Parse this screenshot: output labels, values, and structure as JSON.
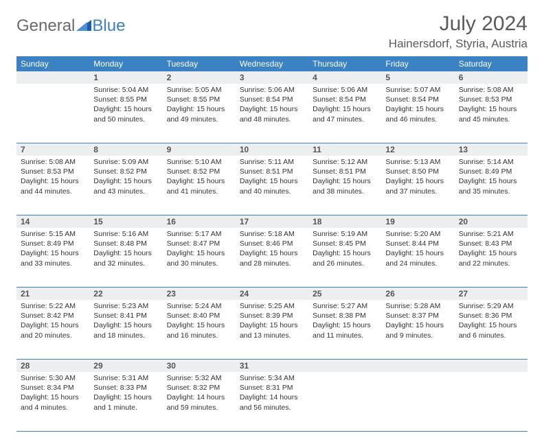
{
  "brand": {
    "part1": "General",
    "part2": "Blue"
  },
  "title": "July 2024",
  "location": "Hainersdorf, Styria, Austria",
  "weekday_headers": [
    "Sunday",
    "Monday",
    "Tuesday",
    "Wednesday",
    "Thursday",
    "Friday",
    "Saturday"
  ],
  "colors": {
    "header_bg": "#3b82c4",
    "header_fg": "#ffffff",
    "daynum_bg": "#eceef0",
    "rule": "#3b82c4",
    "text": "#333333",
    "title_fg": "#5a5a5a"
  },
  "weeks": [
    {
      "nums": [
        "",
        "1",
        "2",
        "3",
        "4",
        "5",
        "6"
      ],
      "cells": [
        null,
        {
          "sr": "Sunrise: 5:04 AM",
          "ss": "Sunset: 8:55 PM",
          "dl": "Daylight: 15 hours and 50 minutes."
        },
        {
          "sr": "Sunrise: 5:05 AM",
          "ss": "Sunset: 8:55 PM",
          "dl": "Daylight: 15 hours and 49 minutes."
        },
        {
          "sr": "Sunrise: 5:06 AM",
          "ss": "Sunset: 8:54 PM",
          "dl": "Daylight: 15 hours and 48 minutes."
        },
        {
          "sr": "Sunrise: 5:06 AM",
          "ss": "Sunset: 8:54 PM",
          "dl": "Daylight: 15 hours and 47 minutes."
        },
        {
          "sr": "Sunrise: 5:07 AM",
          "ss": "Sunset: 8:54 PM",
          "dl": "Daylight: 15 hours and 46 minutes."
        },
        {
          "sr": "Sunrise: 5:08 AM",
          "ss": "Sunset: 8:53 PM",
          "dl": "Daylight: 15 hours and 45 minutes."
        }
      ]
    },
    {
      "nums": [
        "7",
        "8",
        "9",
        "10",
        "11",
        "12",
        "13"
      ],
      "cells": [
        {
          "sr": "Sunrise: 5:08 AM",
          "ss": "Sunset: 8:53 PM",
          "dl": "Daylight: 15 hours and 44 minutes."
        },
        {
          "sr": "Sunrise: 5:09 AM",
          "ss": "Sunset: 8:52 PM",
          "dl": "Daylight: 15 hours and 43 minutes."
        },
        {
          "sr": "Sunrise: 5:10 AM",
          "ss": "Sunset: 8:52 PM",
          "dl": "Daylight: 15 hours and 41 minutes."
        },
        {
          "sr": "Sunrise: 5:11 AM",
          "ss": "Sunset: 8:51 PM",
          "dl": "Daylight: 15 hours and 40 minutes."
        },
        {
          "sr": "Sunrise: 5:12 AM",
          "ss": "Sunset: 8:51 PM",
          "dl": "Daylight: 15 hours and 38 minutes."
        },
        {
          "sr": "Sunrise: 5:13 AM",
          "ss": "Sunset: 8:50 PM",
          "dl": "Daylight: 15 hours and 37 minutes."
        },
        {
          "sr": "Sunrise: 5:14 AM",
          "ss": "Sunset: 8:49 PM",
          "dl": "Daylight: 15 hours and 35 minutes."
        }
      ]
    },
    {
      "nums": [
        "14",
        "15",
        "16",
        "17",
        "18",
        "19",
        "20"
      ],
      "cells": [
        {
          "sr": "Sunrise: 5:15 AM",
          "ss": "Sunset: 8:49 PM",
          "dl": "Daylight: 15 hours and 33 minutes."
        },
        {
          "sr": "Sunrise: 5:16 AM",
          "ss": "Sunset: 8:48 PM",
          "dl": "Daylight: 15 hours and 32 minutes."
        },
        {
          "sr": "Sunrise: 5:17 AM",
          "ss": "Sunset: 8:47 PM",
          "dl": "Daylight: 15 hours and 30 minutes."
        },
        {
          "sr": "Sunrise: 5:18 AM",
          "ss": "Sunset: 8:46 PM",
          "dl": "Daylight: 15 hours and 28 minutes."
        },
        {
          "sr": "Sunrise: 5:19 AM",
          "ss": "Sunset: 8:45 PM",
          "dl": "Daylight: 15 hours and 26 minutes."
        },
        {
          "sr": "Sunrise: 5:20 AM",
          "ss": "Sunset: 8:44 PM",
          "dl": "Daylight: 15 hours and 24 minutes."
        },
        {
          "sr": "Sunrise: 5:21 AM",
          "ss": "Sunset: 8:43 PM",
          "dl": "Daylight: 15 hours and 22 minutes."
        }
      ]
    },
    {
      "nums": [
        "21",
        "22",
        "23",
        "24",
        "25",
        "26",
        "27"
      ],
      "cells": [
        {
          "sr": "Sunrise: 5:22 AM",
          "ss": "Sunset: 8:42 PM",
          "dl": "Daylight: 15 hours and 20 minutes."
        },
        {
          "sr": "Sunrise: 5:23 AM",
          "ss": "Sunset: 8:41 PM",
          "dl": "Daylight: 15 hours and 18 minutes."
        },
        {
          "sr": "Sunrise: 5:24 AM",
          "ss": "Sunset: 8:40 PM",
          "dl": "Daylight: 15 hours and 16 minutes."
        },
        {
          "sr": "Sunrise: 5:25 AM",
          "ss": "Sunset: 8:39 PM",
          "dl": "Daylight: 15 hours and 13 minutes."
        },
        {
          "sr": "Sunrise: 5:27 AM",
          "ss": "Sunset: 8:38 PM",
          "dl": "Daylight: 15 hours and 11 minutes."
        },
        {
          "sr": "Sunrise: 5:28 AM",
          "ss": "Sunset: 8:37 PM",
          "dl": "Daylight: 15 hours and 9 minutes."
        },
        {
          "sr": "Sunrise: 5:29 AM",
          "ss": "Sunset: 8:36 PM",
          "dl": "Daylight: 15 hours and 6 minutes."
        }
      ]
    },
    {
      "nums": [
        "28",
        "29",
        "30",
        "31",
        "",
        "",
        ""
      ],
      "cells": [
        {
          "sr": "Sunrise: 5:30 AM",
          "ss": "Sunset: 8:34 PM",
          "dl": "Daylight: 15 hours and 4 minutes."
        },
        {
          "sr": "Sunrise: 5:31 AM",
          "ss": "Sunset: 8:33 PM",
          "dl": "Daylight: 15 hours and 1 minute."
        },
        {
          "sr": "Sunrise: 5:32 AM",
          "ss": "Sunset: 8:32 PM",
          "dl": "Daylight: 14 hours and 59 minutes."
        },
        {
          "sr": "Sunrise: 5:34 AM",
          "ss": "Sunset: 8:31 PM",
          "dl": "Daylight: 14 hours and 56 minutes."
        },
        null,
        null,
        null
      ]
    }
  ]
}
